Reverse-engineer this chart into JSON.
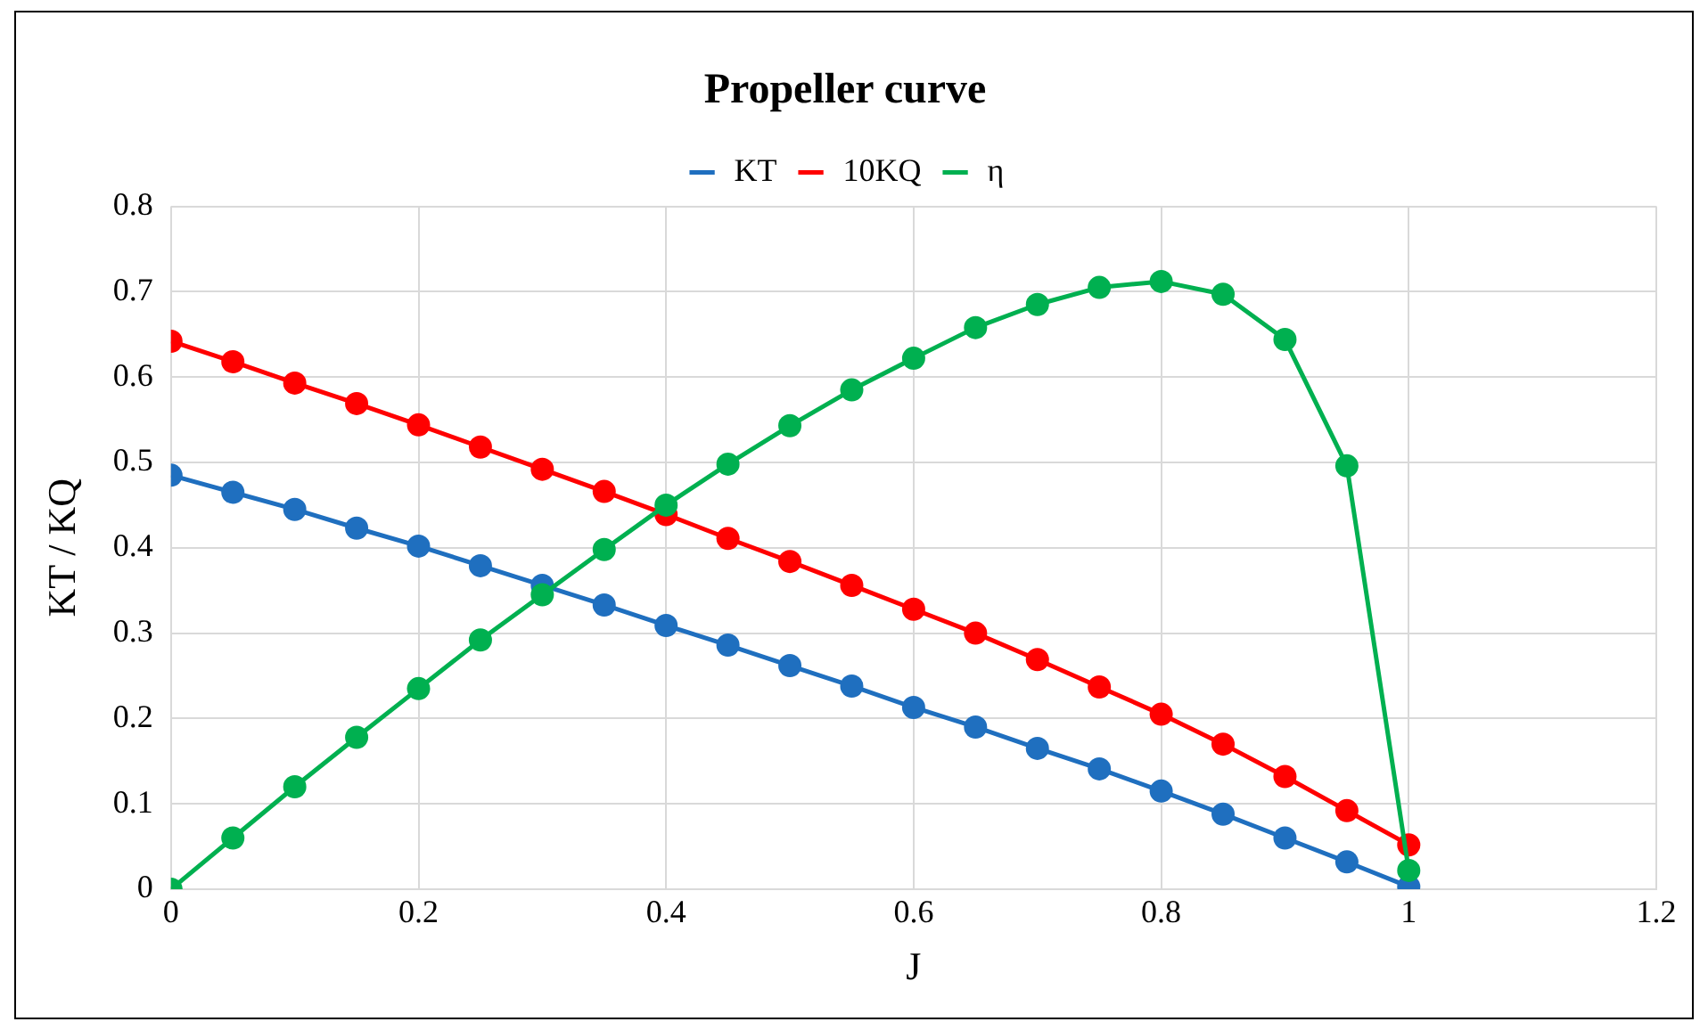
{
  "chart_data": {
    "type": "line",
    "title": "Propeller curve",
    "xlabel": "J",
    "ylabel": "KT / KQ",
    "x": [
      0,
      0.05,
      0.1,
      0.15,
      0.2,
      0.25,
      0.3,
      0.35,
      0.4,
      0.45,
      0.5,
      0.55,
      0.6,
      0.65,
      0.7,
      0.75,
      0.8,
      0.85,
      0.9,
      0.95,
      1
    ],
    "series": [
      {
        "name": "KT",
        "color": "#1f6fbf",
        "values": [
          0.485,
          0.465,
          0.445,
          0.423,
          0.402,
          0.379,
          0.356,
          0.333,
          0.309,
          0.286,
          0.262,
          0.238,
          0.213,
          0.19,
          0.165,
          0.141,
          0.115,
          0.088,
          0.06,
          0.032,
          0.003
        ]
      },
      {
        "name": "10KQ",
        "color": "#ff0000",
        "values": [
          0.642,
          0.618,
          0.593,
          0.569,
          0.544,
          0.518,
          0.492,
          0.466,
          0.439,
          0.411,
          0.384,
          0.356,
          0.328,
          0.3,
          0.269,
          0.237,
          0.205,
          0.17,
          0.132,
          0.092,
          0.052
        ]
      },
      {
        "name": "η",
        "color": "#00b050",
        "values": [
          0,
          0.06,
          0.12,
          0.178,
          0.235,
          0.292,
          0.345,
          0.398,
          0.45,
          0.498,
          0.543,
          0.585,
          0.622,
          0.658,
          0.685,
          0.705,
          0.712,
          0.697,
          0.644,
          0.496,
          0.022
        ]
      }
    ],
    "xlim": [
      0,
      1.2
    ],
    "xticks": [
      0,
      0.2,
      0.4,
      0.6,
      0.8,
      1,
      1.2
    ],
    "ylim": [
      0,
      0.8
    ],
    "yticks": [
      0,
      0.1,
      0.2,
      0.3,
      0.4,
      0.5,
      0.6,
      0.7,
      0.8
    ],
    "grid": true,
    "legend": "top",
    "marker": "circle",
    "line_style": "solid"
  }
}
